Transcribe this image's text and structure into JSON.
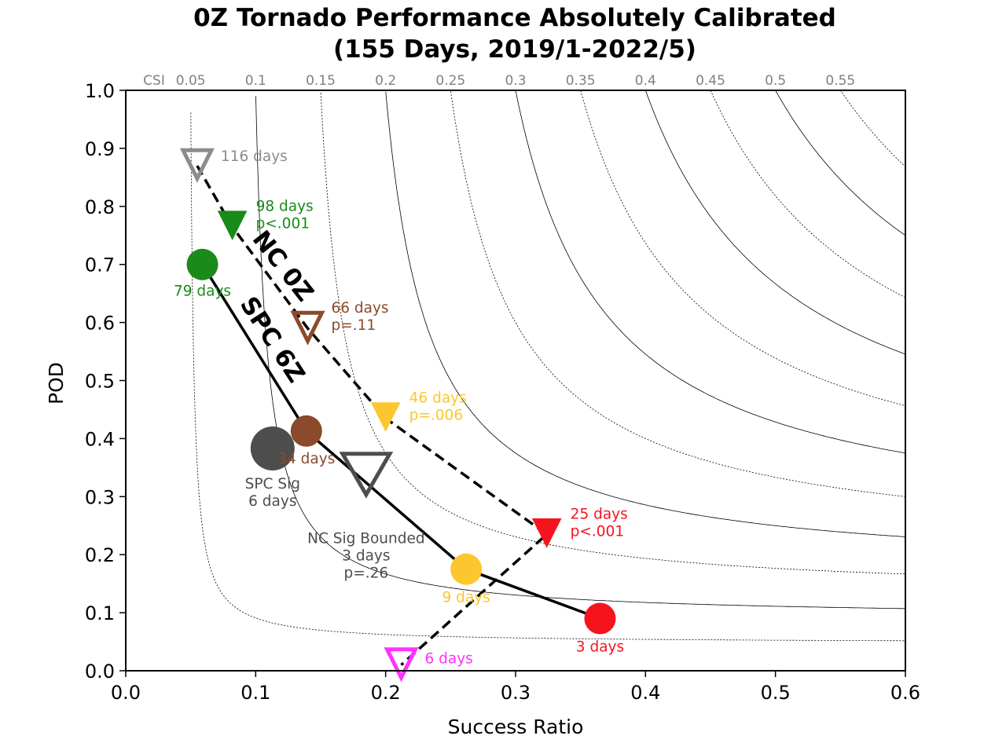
{
  "chart_data": {
    "type": "scatter",
    "title": "0Z Tornado Performance Absolutely Calibrated",
    "subtitle": "(155 Days, 2019/1-2022/5)",
    "xlabel": "Success Ratio",
    "ylabel": "POD",
    "xlim": [
      0.0,
      0.6
    ],
    "ylim": [
      0.0,
      1.0
    ],
    "xticks": [
      "0.0",
      "0.1",
      "0.2",
      "0.3",
      "0.4",
      "0.5",
      "0.6"
    ],
    "yticks": [
      "0.0",
      "0.1",
      "0.2",
      "0.3",
      "0.4",
      "0.5",
      "0.6",
      "0.7",
      "0.8",
      "0.9",
      "1.0"
    ],
    "csi_axis_label": "CSI",
    "csi_values": [
      "0.05",
      "0.1",
      "0.15",
      "0.2",
      "0.25",
      "0.3",
      "0.35",
      "0.4",
      "0.45",
      "0.5",
      "0.55"
    ],
    "csi_levels": [
      0.05,
      0.1,
      0.15,
      0.2,
      0.25,
      0.3,
      0.35,
      0.4,
      0.45,
      0.5,
      0.55
    ],
    "grid": false,
    "series": [
      {
        "name": "NC 0Z",
        "line_style": "dashed",
        "marker": "triangle-down",
        "points": [
          {
            "x": 0.055,
            "y": 0.87,
            "color": "#8c8c8c",
            "filled": false,
            "label": [
              "116 days"
            ]
          },
          {
            "x": 0.082,
            "y": 0.765,
            "color": "#1a8a1a",
            "filled": true,
            "label": [
              "98 days",
              "p<.001"
            ]
          },
          {
            "x": 0.14,
            "y": 0.59,
            "color": "#8b4a2b",
            "filled": false,
            "label": [
              "66 days",
              "p=.11"
            ]
          },
          {
            "x": 0.2,
            "y": 0.435,
            "color": "#fcc62e",
            "filled": true,
            "label": [
              "46 days",
              "p=.006"
            ]
          },
          {
            "x": 0.324,
            "y": 0.235,
            "color": "#f5141e",
            "filled": true,
            "label": [
              "25 days",
              "p<.001"
            ]
          },
          {
            "x": 0.212,
            "y": 0.01,
            "color": "#ff33ff",
            "filled": false,
            "label": [
              "6 days"
            ]
          }
        ]
      },
      {
        "name": "SPC 6Z",
        "line_style": "solid",
        "marker": "circle",
        "points": [
          {
            "x": 0.059,
            "y": 0.7,
            "color": "#1a8a1a",
            "label": [
              "79 days"
            ]
          },
          {
            "x": 0.139,
            "y": 0.413,
            "color": "#8b4a2b",
            "label": [
              "34 days"
            ]
          },
          {
            "x": 0.262,
            "y": 0.175,
            "color": "#fcc62e",
            "label": [
              "9 days"
            ]
          },
          {
            "x": 0.365,
            "y": 0.09,
            "color": "#f5141e",
            "label": [
              "3 days"
            ]
          }
        ]
      },
      {
        "name": "SPC Sig",
        "marker": "circle",
        "points": [
          {
            "x": 0.113,
            "y": 0.383,
            "color": "#4d4d4d",
            "label": [
              "SPC Sig",
              "6 days"
            ]
          }
        ]
      },
      {
        "name": "NC Sig Bounded",
        "marker": "triangle-down",
        "points": [
          {
            "x": 0.185,
            "y": 0.335,
            "color": "#4d4d4d",
            "filled": false,
            "label": [
              "NC Sig Bounded",
              "3 days",
              "p=.26"
            ]
          }
        ]
      }
    ]
  }
}
